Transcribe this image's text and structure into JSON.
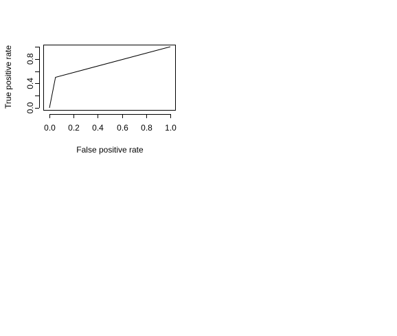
{
  "chart_data": {
    "type": "line",
    "title": "",
    "xlabel": "False positive rate",
    "ylabel": "True positive rate",
    "xlim": [
      0.0,
      1.0
    ],
    "ylim": [
      0.0,
      1.0
    ],
    "x_ticks": [
      "0.0",
      "0.2",
      "0.4",
      "0.6",
      "0.8",
      "1.0"
    ],
    "y_ticks": [
      "0.0",
      "0.4",
      "0.8"
    ],
    "y_minor_ticks": [
      0.2,
      0.6,
      1.0
    ],
    "grid": false,
    "legend": "none",
    "colors": {
      "line": "#000000",
      "axis": "#000000"
    },
    "series": [
      {
        "x": [
          0.0,
          0.05,
          1.0
        ],
        "y": [
          0.0,
          0.5,
          1.0
        ]
      }
    ]
  }
}
